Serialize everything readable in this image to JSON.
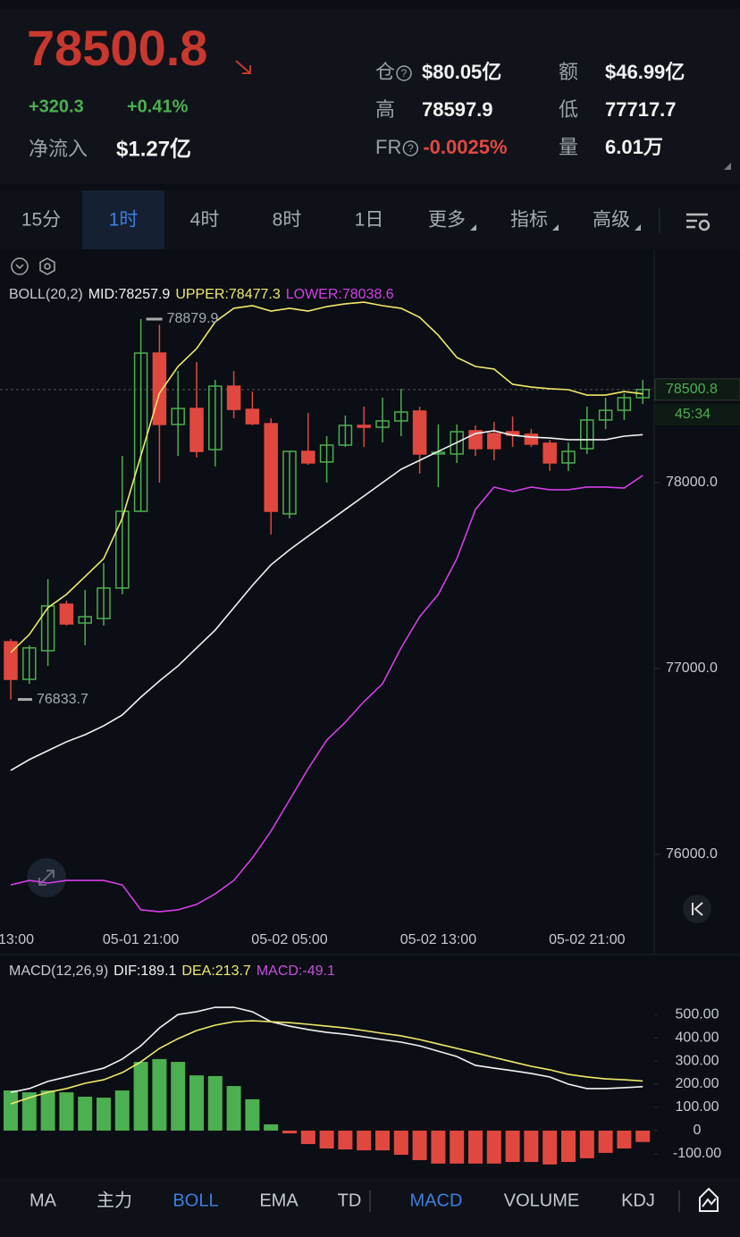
{
  "header": {
    "price": "78500.8",
    "change": "+320.3",
    "change_pct": "+0.41%",
    "net_inflow_label": "净流入",
    "net_inflow": "$1.27亿",
    "stats": [
      {
        "label": "仓",
        "value": "$80.05亿",
        "info": true
      },
      {
        "label": "额",
        "value": "$46.99亿",
        "info": false
      },
      {
        "label": "高",
        "value": "78597.9",
        "info": false
      },
      {
        "label": "低",
        "value": "77717.7",
        "info": false
      },
      {
        "label": "FR",
        "value": "-0.0025%",
        "info": true
      },
      {
        "label": "量",
        "value": "6.01万",
        "info": false
      }
    ]
  },
  "tabs": [
    "15分",
    "1时",
    "4时",
    "8时",
    "1日",
    "更多",
    "指标",
    "高级"
  ],
  "active_tab": 1,
  "indicator_tabs": [
    "MA",
    "主力",
    "BOLL",
    "EMA",
    "TD",
    "MACD",
    "VOLUME",
    "KDJ"
  ],
  "active_indicators": [
    2,
    5
  ],
  "chart_data": [
    {
      "type": "candlestick",
      "indicator": "BOLL(20,2)",
      "up_color": "#4caf50",
      "down_color": "#e0483f",
      "categories": [
        null,
        null,
        null,
        null,
        null,
        null,
        null,
        "05-01 21:00",
        null,
        null,
        null,
        null,
        null,
        null,
        null,
        "05-02 05:00",
        null,
        null,
        null,
        null,
        null,
        null,
        null,
        "05-02 13:00",
        null,
        null,
        null,
        null,
        null,
        null,
        null,
        "05-02 21:00",
        null,
        null,
        null
      ],
      "x_label_left": "13:00",
      "open": [
        77144,
        76942,
        77096,
        77346,
        77245,
        77269,
        77433,
        77846,
        78697,
        78313,
        78399,
        78178,
        78519,
        78394,
        78317,
        77832,
        78168,
        78111,
        78202,
        78308,
        78298,
        78332,
        78385,
        78154,
        78154,
        78279,
        78264,
        78274,
        78260,
        78212,
        78106,
        78183,
        78337,
        78389,
        78457
      ],
      "high": [
        77159,
        77125,
        77481,
        77365,
        77423,
        77567,
        78144,
        78879.9,
        78850,
        78601,
        78649,
        78553,
        78601,
        78490,
        78346,
        78168,
        78375,
        78250,
        78361,
        78409,
        78457,
        78505,
        78409,
        78313,
        78313,
        78308,
        78327,
        78356,
        78288,
        78231,
        78216,
        78409,
        78457,
        78481,
        78553
      ],
      "low": [
        76833.7,
        76918,
        77014,
        77231,
        77125,
        77231,
        77399,
        77846,
        78000,
        78144,
        78135,
        78087,
        78346,
        78308,
        77721,
        77808,
        78096,
        78000,
        78192,
        78192,
        78216,
        78250,
        78048,
        77976,
        78106,
        78144,
        78120,
        78192,
        78192,
        78063,
        78063,
        78154,
        78288,
        78337,
        78423
      ],
      "close": [
        76942,
        77111,
        77337,
        77240,
        77279,
        77433,
        77846,
        78697,
        78313,
        78399,
        78168,
        78519,
        78394,
        78317,
        77846,
        78168,
        78106,
        78202,
        78308,
        78298,
        78332,
        78380,
        78154,
        78163,
        78274,
        78183,
        78183,
        78255,
        78207,
        78106,
        78168,
        78337,
        78389,
        78457,
        78500.8
      ],
      "lines": [
        {
          "name": "MID:78257.9",
          "color": "#f2f2f2",
          "values": [
            76452,
            76510,
            76558,
            76606,
            76644,
            76692,
            76750,
            76846,
            76933,
            77014,
            77111,
            77207,
            77327,
            77447,
            77558,
            77639,
            77712,
            77784,
            77856,
            77928,
            78000,
            78072,
            78120,
            78168,
            78216,
            78264,
            78279,
            78255,
            78245,
            78240,
            78231,
            78231,
            78231,
            78250,
            78257.9
          ]
        },
        {
          "name": "UPPER:78477.3",
          "color": "#f0ea6a",
          "values": [
            77086,
            77183,
            77327,
            77399,
            77495,
            77591,
            77808,
            78144,
            78481,
            78625,
            78721,
            78865,
            78938,
            78952,
            78923,
            78938,
            78923,
            78947,
            78962,
            78971,
            78952,
            78938,
            78889,
            78793,
            78673,
            78625,
            78611,
            78529,
            78514,
            78505,
            78500,
            78471,
            78471,
            78490,
            78477.3
          ]
        },
        {
          "name": "LOWER:78038.6",
          "color": "#d53ee8",
          "values": [
            75836,
            75860,
            75846,
            75860,
            75860,
            75860,
            75836,
            75702,
            75692,
            75702,
            75731,
            75788,
            75860,
            75981,
            76125,
            76293,
            76461,
            76615,
            76711,
            76822,
            76918,
            77111,
            77279,
            77399,
            77591,
            77856,
            77976,
            77952,
            77976,
            77962,
            77962,
            77976,
            77976,
            77971,
            78038.6
          ]
        }
      ],
      "high_marker": 78879.9,
      "high_marker_index": 7,
      "low_marker": 76833.7,
      "low_marker_index": 0,
      "price_tag": 78500.8,
      "countdown": "45:34",
      "ylim": [
        75620,
        79226
      ],
      "yticks": [
        {
          "value": 76000,
          "label": "76000.0"
        },
        {
          "value": 77000,
          "label": "77000.0"
        },
        {
          "value": 78000,
          "label": "78000.0"
        }
      ]
    },
    {
      "type": "macd",
      "indicator": "MACD(12,26,9)",
      "color": "#c94ee0",
      "up_color": "#4caf50",
      "down_color": "#e0483f",
      "values": [
        173,
        165,
        173,
        165,
        146,
        142,
        173,
        296,
        308,
        296,
        238,
        235,
        192,
        135,
        27,
        -12,
        -58,
        -77,
        -81,
        -85,
        -85,
        -104,
        -127,
        -142,
        -142,
        -142,
        -142,
        -135,
        -135,
        -146,
        -135,
        -119,
        -96,
        -77,
        -49.1
      ],
      "value_label": "MACD:-49.1",
      "series": [
        {
          "name": "DIF:189.1",
          "color": "#f2f2f2",
          "values": [
            165,
            181,
            212,
            231,
            250,
            269,
            308,
            365,
            442,
            500,
            512,
            531,
            531,
            512,
            469,
            450,
            435,
            423,
            415,
            404,
            392,
            381,
            365,
            342,
            319,
            281,
            269,
            258,
            246,
            231,
            200,
            181,
            181,
            185,
            189.1
          ]
        },
        {
          "name": "DEA:213.7",
          "color": "#f0ea6a",
          "values": [
            115,
            142,
            165,
            181,
            204,
            219,
            250,
            296,
            354,
            396,
            431,
            454,
            469,
            473,
            469,
            465,
            458,
            450,
            442,
            431,
            419,
            408,
            392,
            373,
            354,
            335,
            315,
            296,
            277,
            262,
            242,
            231,
            223,
            219,
            213.7
          ]
        }
      ],
      "ylim": [
        -181,
        635
      ],
      "yticks": [
        {
          "value": 500,
          "label": "500.00"
        },
        {
          "value": 400,
          "label": "400.00"
        },
        {
          "value": 300,
          "label": "300.00"
        },
        {
          "value": 200,
          "label": "200.00"
        },
        {
          "value": 100,
          "label": "100.00"
        },
        0,
        {
          "value": -100,
          "label": "-100.00"
        }
      ]
    }
  ]
}
